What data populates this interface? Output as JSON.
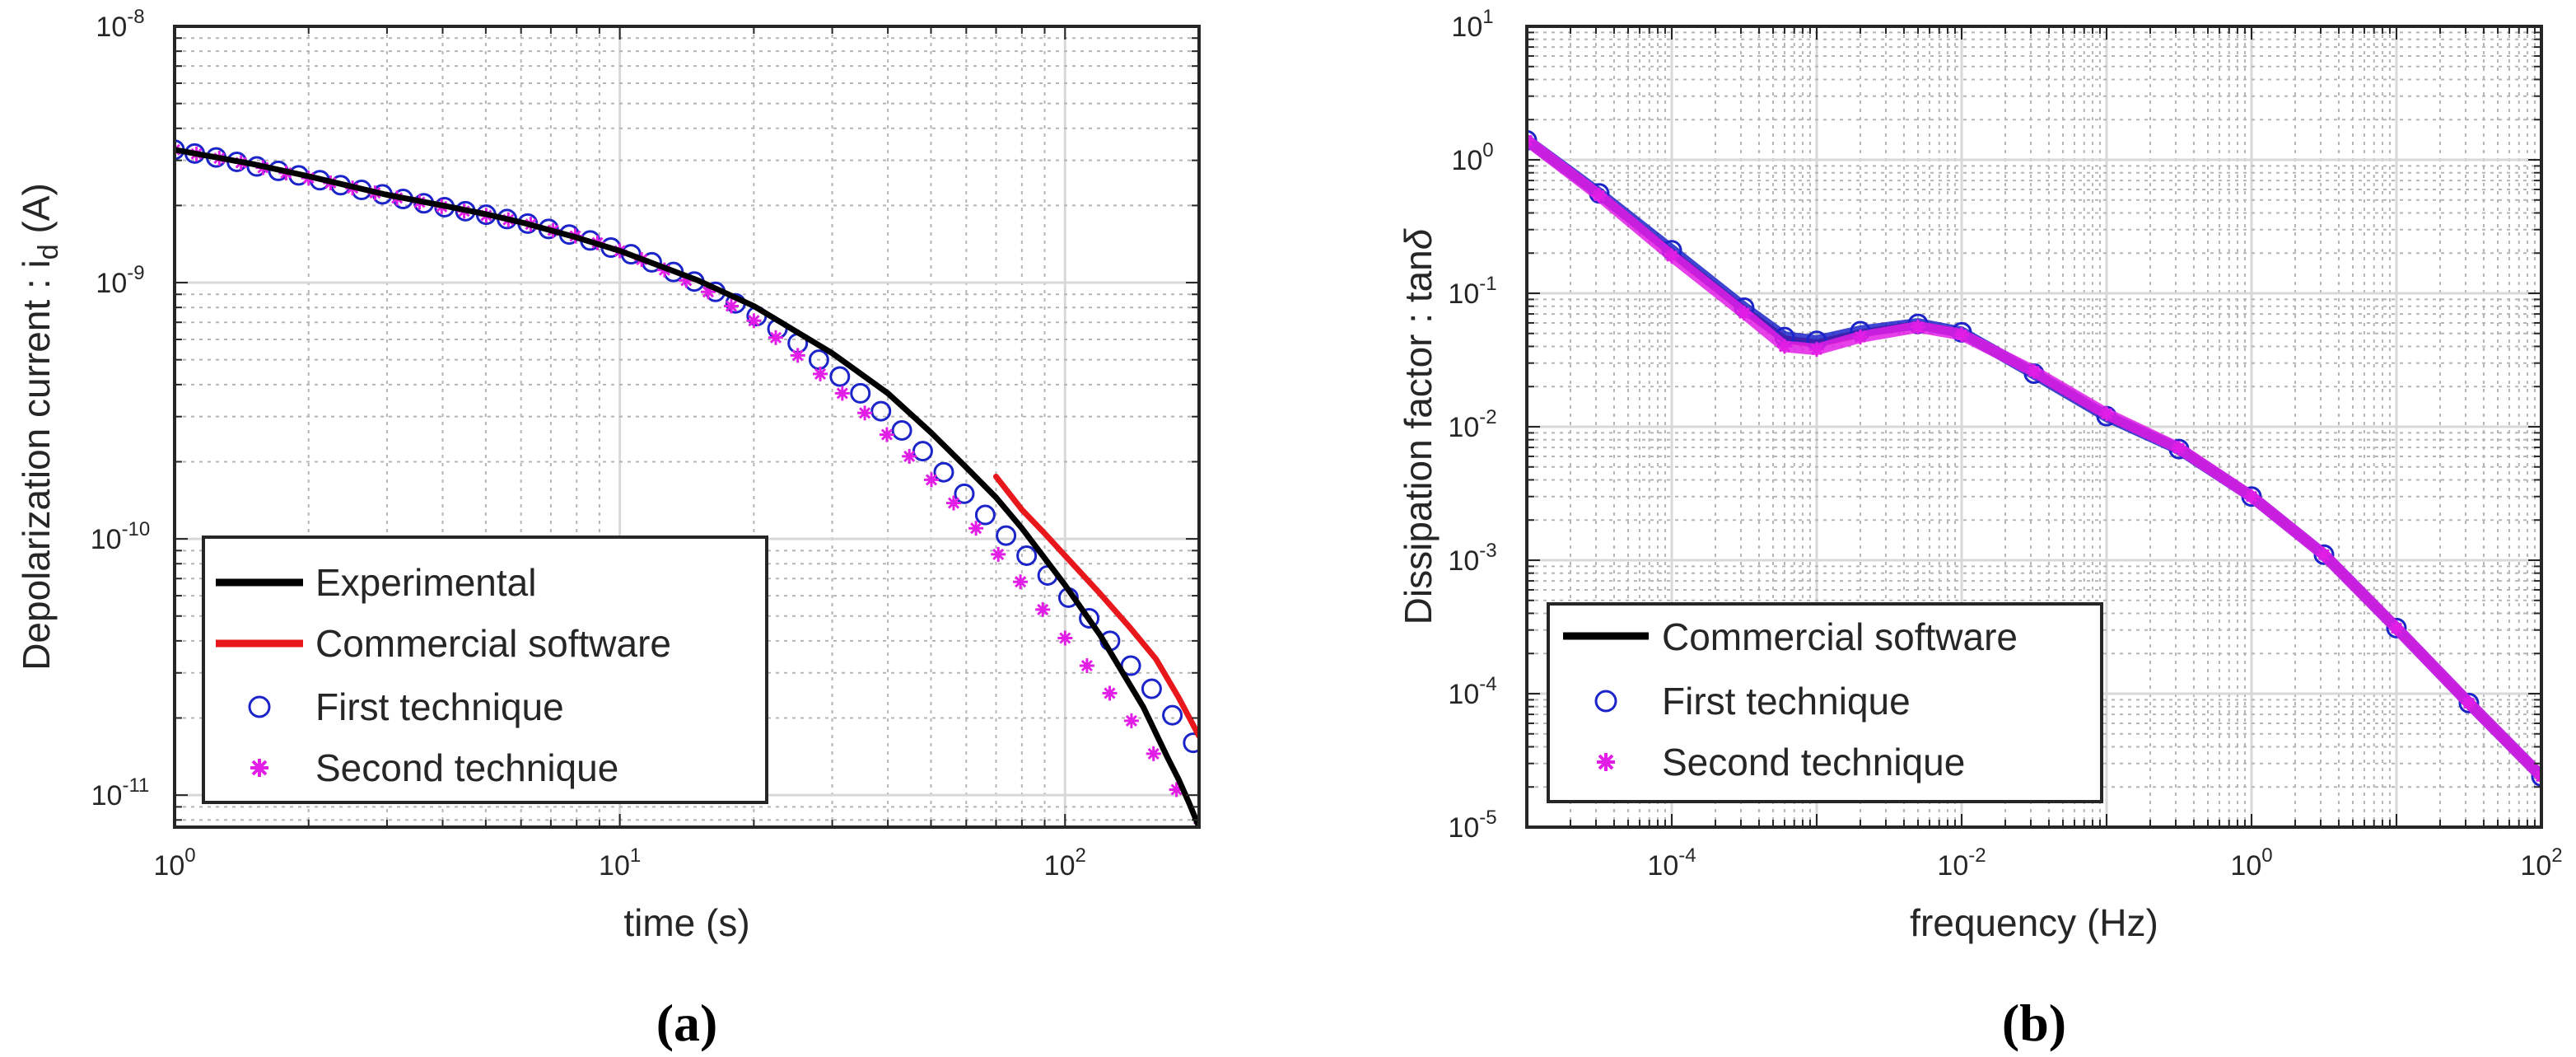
{
  "figure": {
    "panel_a_label": "(a)",
    "panel_b_label": "(b)"
  },
  "colors": {
    "experimental": "#000000",
    "commercial": "#e8171b",
    "first": "#1b24c9",
    "second": "#e21ee6",
    "grid_minor": "#b5b5b5",
    "grid_major": "#d8d8d8",
    "axis": "#262626"
  },
  "chart_data": [
    {
      "type": "line",
      "title": "",
      "xlabel": "time (s)",
      "ylabel_main": "Depolarization current : i",
      "ylabel_sub": "d",
      "ylabel_unit": " (A)",
      "xscale": "log",
      "yscale": "log",
      "xlim": [
        1,
        200
      ],
      "ylim": [
        7.5e-12,
        1e-08
      ],
      "grid": "on (major and minor)",
      "legend_location": "bottom-left",
      "xticks": [
        {
          "value": 1,
          "base": "10",
          "exp": "0"
        },
        {
          "value": 10,
          "base": "10",
          "exp": "1"
        },
        {
          "value": 100,
          "base": "10",
          "exp": "2"
        }
      ],
      "yticks": [
        {
          "value": 1e-11,
          "base": "10",
          "exp": "-11"
        },
        {
          "value": 1e-10,
          "base": "10",
          "exp": "-10"
        },
        {
          "value": 1e-09,
          "base": "10",
          "exp": "-9"
        },
        {
          "value": 1e-08,
          "base": "10",
          "exp": "-8"
        }
      ],
      "series": [
        {
          "key": "experimental",
          "name": "Experimental",
          "style": "line",
          "x": [
            1,
            1.5,
            2,
            3,
            4,
            5,
            6,
            8,
            10,
            15,
            20,
            30,
            40,
            50,
            60,
            70,
            80,
            100,
            120,
            150,
            170,
            180,
            190,
            200
          ],
          "y": [
            3.3e-09,
            2.9e-09,
            2.6e-09,
            2.2e-09,
            2e-09,
            1.85e-09,
            1.72e-09,
            1.5e-09,
            1.33e-09,
            1.02e-09,
            8.1e-10,
            5.3e-10,
            3.7e-10,
            2.6e-10,
            1.9e-10,
            1.45e-10,
            1.1e-10,
            6.6e-11,
            4.2e-11,
            2.2e-11,
            1.4e-11,
            1.15e-11,
            9.3e-12,
            7.5e-12
          ]
        },
        {
          "key": "commercial",
          "name": "Commercial software",
          "style": "line",
          "x": [
            70,
            80,
            90,
            100,
            120,
            140,
            160,
            180,
            200
          ],
          "y": [
            1.75e-10,
            1.3e-10,
            1.05e-10,
            8.6e-11,
            6.1e-11,
            4.5e-11,
            3.4e-11,
            2.4e-11,
            1.7e-11
          ]
        },
        {
          "key": "first",
          "name": "First technique",
          "style": "circle",
          "x": [
            1,
            1.11,
            1.24,
            1.38,
            1.53,
            1.71,
            1.9,
            2.12,
            2.36,
            2.63,
            2.93,
            3.26,
            3.63,
            4.04,
            4.5,
            5.01,
            5.58,
            6.21,
            6.92,
            7.7,
            8.58,
            9.55,
            10.6,
            11.8,
            13.2,
            14.7,
            16.4,
            18.2,
            20.3,
            22.6,
            25.1,
            28,
            31.2,
            34.7,
            38.6,
            43,
            47.9,
            53.4,
            59.4,
            66.2,
            73.7,
            82,
            91.4,
            101.8,
            113.3,
            126.2,
            140.5,
            156.5,
            174.2,
            194
          ],
          "y": [
            3.3e-09,
            3.19e-09,
            3.08e-09,
            2.96e-09,
            2.84e-09,
            2.73e-09,
            2.62e-09,
            2.51e-09,
            2.4e-09,
            2.3e-09,
            2.21e-09,
            2.12e-09,
            2.04e-09,
            1.97e-09,
            1.9e-09,
            1.84e-09,
            1.77e-09,
            1.7e-09,
            1.62e-09,
            1.54e-09,
            1.46e-09,
            1.37e-09,
            1.29e-09,
            1.2e-09,
            1.1e-09,
            1.01e-09,
            9.2e-10,
            8.3e-10,
            7.4e-10,
            6.6e-10,
            5.8e-10,
            5e-10,
            4.3e-10,
            3.7e-10,
            3.15e-10,
            2.65e-10,
            2.2e-10,
            1.82e-10,
            1.5e-10,
            1.24e-10,
            1.03e-10,
            8.6e-11,
            7.2e-11,
            5.9e-11,
            4.9e-11,
            4e-11,
            3.2e-11,
            2.6e-11,
            2.05e-11,
            1.6e-11
          ]
        },
        {
          "key": "second",
          "name": "Second technique",
          "style": "asterisk",
          "x": [
            1,
            1.12,
            1.26,
            1.41,
            1.58,
            1.78,
            2,
            2.24,
            2.51,
            2.82,
            3.16,
            3.55,
            3.98,
            4.47,
            5.01,
            5.62,
            6.31,
            7.08,
            7.94,
            8.91,
            10,
            11.2,
            12.6,
            14.1,
            15.8,
            17.8,
            20,
            22.4,
            25.1,
            28.2,
            31.6,
            35.5,
            39.8,
            44.7,
            50.1,
            56.2,
            63.1,
            70.8,
            79.4,
            89.1,
            100,
            112,
            126,
            141,
            158,
            178,
            200
          ],
          "y": [
            3.3e-09,
            3.18e-09,
            3.06e-09,
            2.94e-09,
            2.81e-09,
            2.68e-09,
            2.56e-09,
            2.45e-09,
            2.34e-09,
            2.24e-09,
            2.14e-09,
            2.06e-09,
            1.98e-09,
            1.9e-09,
            1.83e-09,
            1.76e-09,
            1.69e-09,
            1.6e-09,
            1.52e-09,
            1.43e-09,
            1.33e-09,
            1.23e-09,
            1.12e-09,
            1.02e-09,
            9.2e-10,
            8.1e-10,
            7.1e-10,
            6.1e-10,
            5.2e-10,
            4.4e-10,
            3.7e-10,
            3.1e-10,
            2.55e-10,
            2.1e-10,
            1.7e-10,
            1.38e-10,
            1.1e-10,
            8.7e-11,
            6.8e-11,
            5.3e-11,
            4.1e-11,
            3.2e-11,
            2.5e-11,
            1.95e-11,
            1.45e-11,
            1.05e-11,
            7.5e-12
          ]
        }
      ]
    },
    {
      "type": "line",
      "title": "",
      "xlabel": "frequency (Hz)",
      "ylabel_main": "Dissipation factor : tan",
      "ylabel_greek": "δ",
      "xscale": "log",
      "yscale": "log",
      "xlim": [
        1e-05,
        100
      ],
      "ylim": [
        1e-05,
        10
      ],
      "grid": "on (major and minor)",
      "legend_location": "bottom-left",
      "xticks": [
        {
          "value": 0.0001,
          "base": "10",
          "exp": "-4"
        },
        {
          "value": 0.01,
          "base": "10",
          "exp": "-2"
        },
        {
          "value": 1,
          "base": "10",
          "exp": "0"
        },
        {
          "value": 100,
          "base": "10",
          "exp": "2"
        }
      ],
      "yticks": [
        {
          "value": 1e-05,
          "base": "10",
          "exp": "-5"
        },
        {
          "value": 0.0001,
          "base": "10",
          "exp": "-4"
        },
        {
          "value": 0.001,
          "base": "10",
          "exp": "-3"
        },
        {
          "value": 0.01,
          "base": "10",
          "exp": "-2"
        },
        {
          "value": 0.1,
          "base": "10",
          "exp": "-1"
        },
        {
          "value": 1,
          "base": "10",
          "exp": "0"
        },
        {
          "value": 10,
          "base": "10",
          "exp": "1"
        }
      ],
      "series": [
        {
          "key": "commercial_b",
          "name": "Commercial software",
          "style": "line",
          "x": [
            1e-05,
            3.16e-05,
            0.0001,
            0.000316,
            0.0006,
            0.001,
            0.002,
            0.005,
            0.01,
            0.0316,
            0.1,
            0.316,
            1,
            3.16,
            10,
            31.6,
            100
          ],
          "y": [
            1.4,
            0.55,
            0.2,
            0.075,
            0.045,
            0.042,
            0.05,
            0.058,
            0.05,
            0.025,
            0.012,
            0.0068,
            0.003,
            0.0011,
            0.00031,
            8.5e-05,
            2.4e-05
          ]
        },
        {
          "key": "first_b",
          "name": "First technique",
          "style": "circle",
          "x": [
            1e-05,
            3.16e-05,
            0.0001,
            0.000316,
            0.0006,
            0.001,
            0.002,
            0.005,
            0.01,
            0.0316,
            0.1,
            0.316,
            1,
            3.16,
            10,
            31.6,
            100
          ],
          "y": [
            1.4,
            0.56,
            0.21,
            0.078,
            0.047,
            0.044,
            0.052,
            0.059,
            0.051,
            0.025,
            0.012,
            0.0068,
            0.003,
            0.0011,
            0.00031,
            8.5e-05,
            2.4e-05
          ]
        },
        {
          "key": "second_b",
          "name": "Second technique",
          "style": "asterisk",
          "x": [
            1e-05,
            3.16e-05,
            0.0001,
            0.000316,
            0.0006,
            0.001,
            0.002,
            0.005,
            0.01,
            0.0316,
            0.1,
            0.316,
            1,
            3.16,
            10,
            31.6,
            100
          ],
          "y": [
            1.4,
            0.54,
            0.19,
            0.071,
            0.04,
            0.038,
            0.047,
            0.056,
            0.049,
            0.026,
            0.0125,
            0.0069,
            0.003,
            0.0011,
            0.00031,
            8.5e-05,
            2.4e-05
          ]
        }
      ]
    }
  ]
}
